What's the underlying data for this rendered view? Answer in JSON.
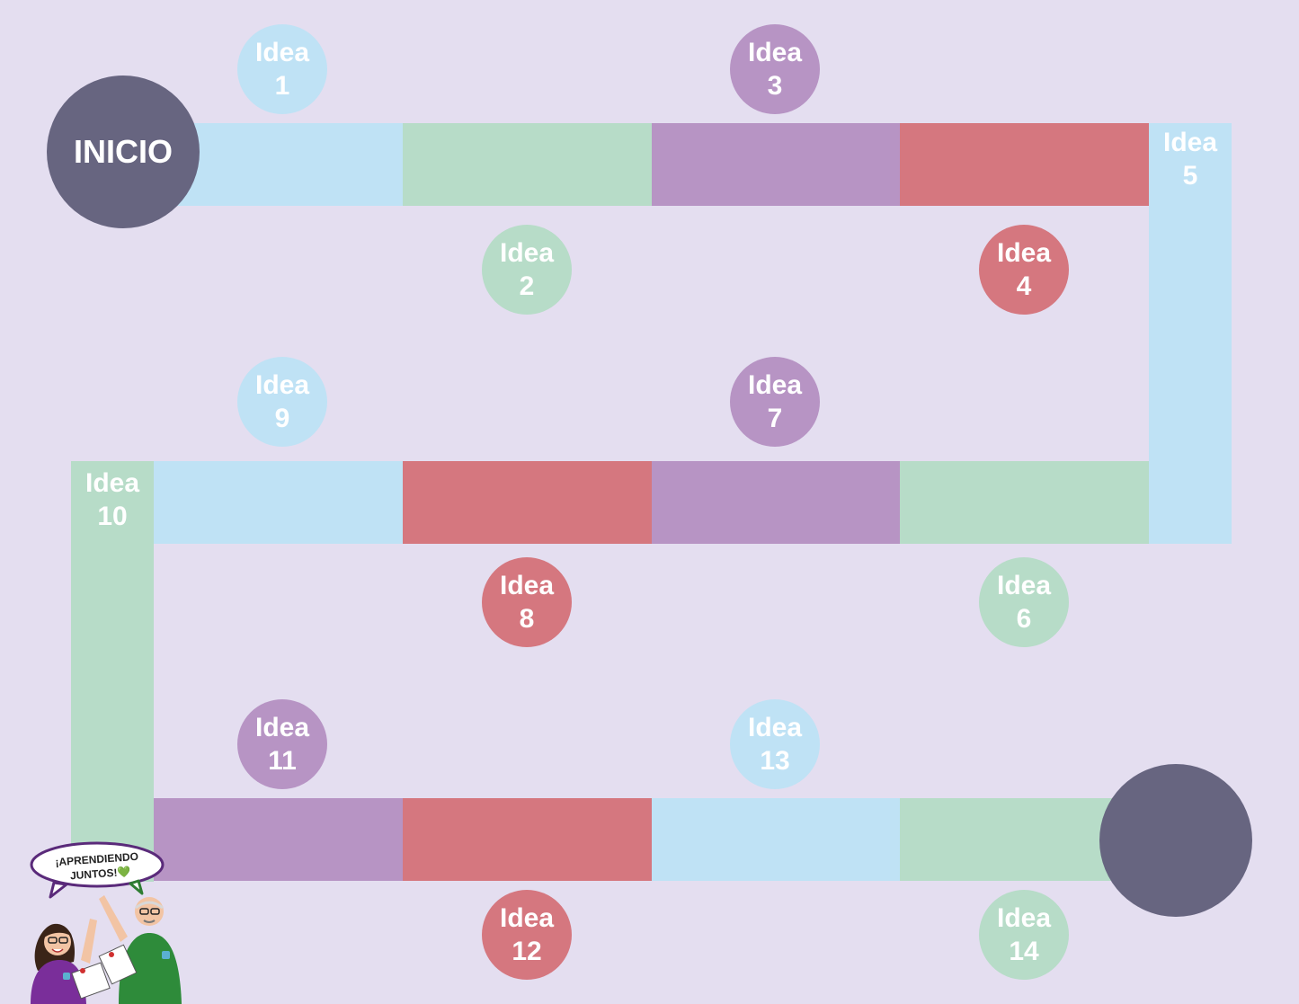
{
  "colors": {
    "background": "#e4def0",
    "blue": "#bfe2f5",
    "green": "#b7dcc8",
    "purple": "#b794c4",
    "red": "#d5777f",
    "circle": "#676580"
  },
  "start": {
    "label": "INICIO"
  },
  "finish": {
    "label": ""
  },
  "ideas": [
    {
      "word": "Idea",
      "num": "1",
      "color": "blue"
    },
    {
      "word": "Idea",
      "num": "2",
      "color": "green"
    },
    {
      "word": "Idea",
      "num": "3",
      "color": "purple"
    },
    {
      "word": "Idea",
      "num": "4",
      "color": "red"
    },
    {
      "word": "Idea",
      "num": "5",
      "color": "blue"
    },
    {
      "word": "Idea",
      "num": "6",
      "color": "green"
    },
    {
      "word": "Idea",
      "num": "7",
      "color": "purple"
    },
    {
      "word": "Idea",
      "num": "8",
      "color": "red"
    },
    {
      "word": "Idea",
      "num": "9",
      "color": "blue"
    },
    {
      "word": "Idea",
      "num": "10",
      "color": "green"
    },
    {
      "word": "Idea",
      "num": "11",
      "color": "purple"
    },
    {
      "word": "Idea",
      "num": "12",
      "color": "red"
    },
    {
      "word": "Idea",
      "num": "13",
      "color": "blue"
    },
    {
      "word": "Idea",
      "num": "14",
      "color": "green"
    }
  ],
  "speech_bubble": {
    "line1": "¡APRENDIENDO",
    "line2": "JUNTOS!💚"
  }
}
